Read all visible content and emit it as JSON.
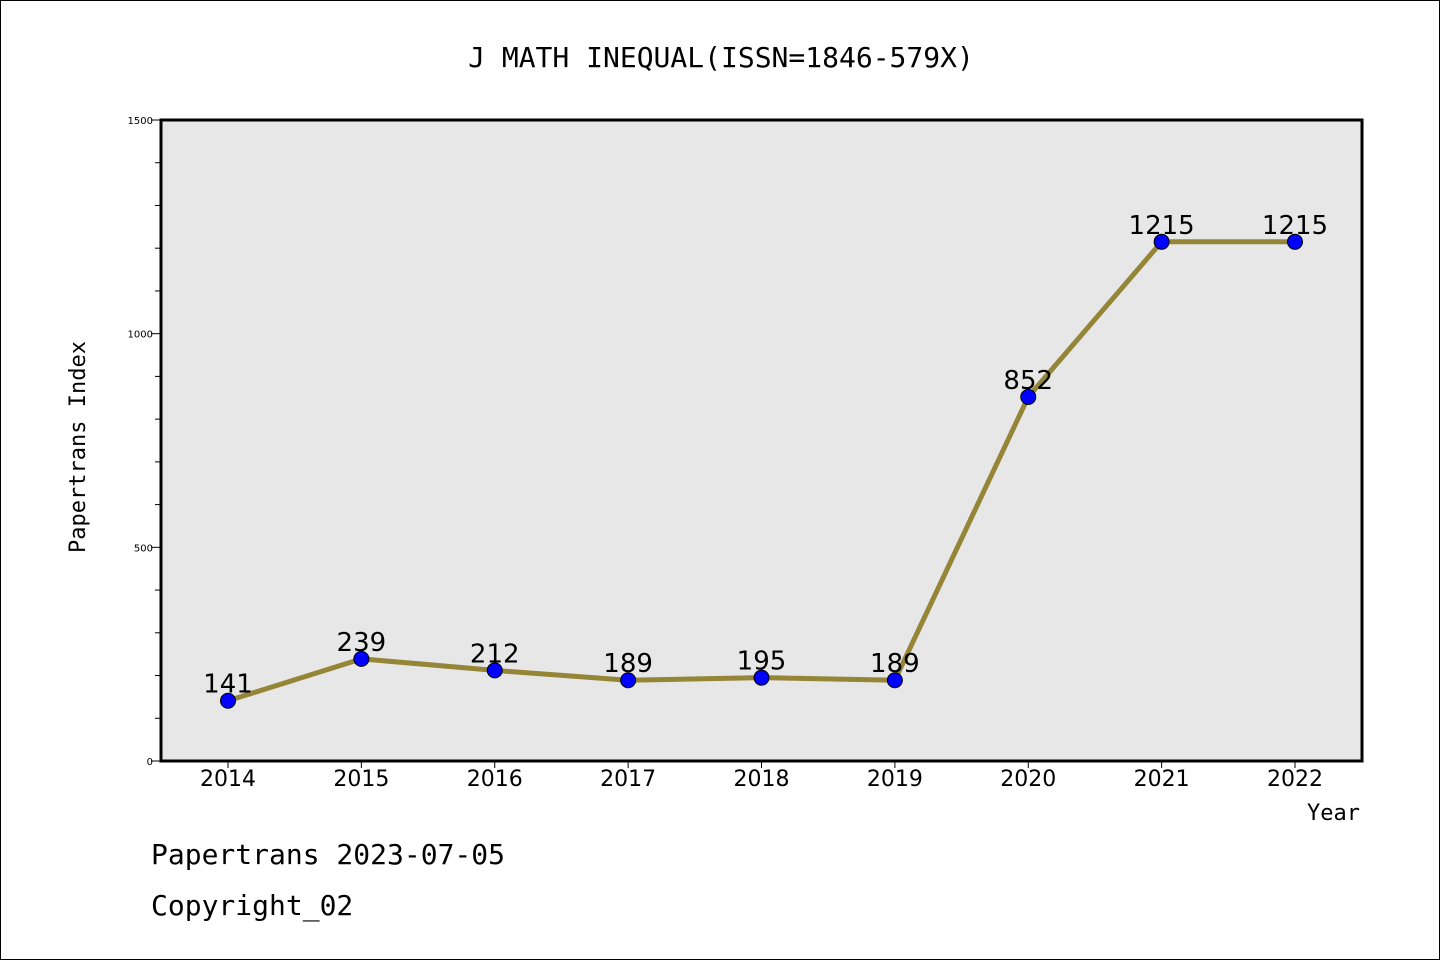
{
  "chart_data": {
    "type": "line",
    "title": "J MATH INEQUAL(ISSN=1846-579X)",
    "xlabel": "Year",
    "ylabel": "Papertrans Index",
    "categories": [
      "2014",
      "2015",
      "2016",
      "2017",
      "2018",
      "2019",
      "2020",
      "2021",
      "2022"
    ],
    "series": [
      {
        "values": [
          141,
          239,
          212,
          189,
          195,
          189,
          852,
          1215,
          1215
        ]
      }
    ],
    "data_labels": [
      "141",
      "239",
      "212",
      "189",
      "195",
      "189",
      "852",
      "1215",
      "1215"
    ],
    "ylim": [
      0,
      1500
    ],
    "y_ticks": [
      0,
      500,
      1000,
      1500
    ],
    "y_tick_labels": [
      "0",
      "500",
      "1000",
      "1500"
    ],
    "grid": false,
    "line_color": "#948537",
    "marker_color": "#0000ff",
    "plot_background": "#e7e7e7"
  },
  "footer": {
    "line1": "Papertrans 2023-07-05",
    "line2": "Copyright_02"
  }
}
